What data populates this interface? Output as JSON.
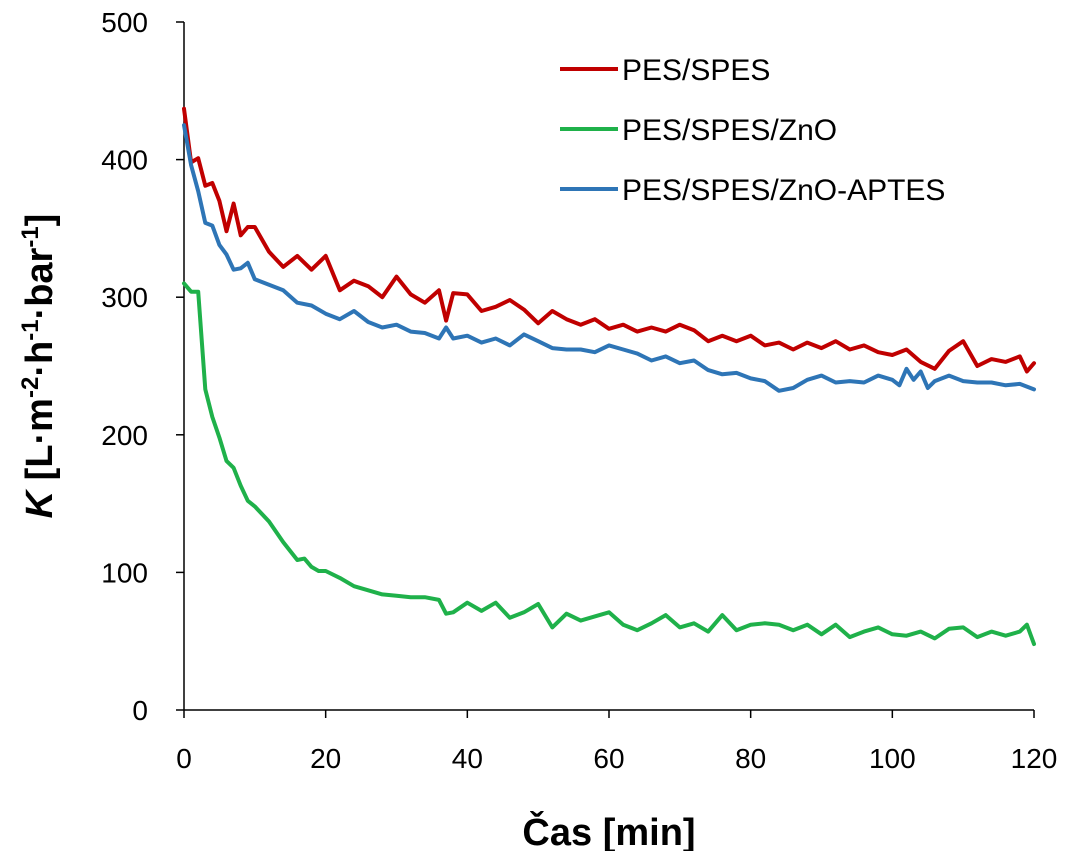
{
  "chart_data": {
    "type": "line",
    "xlabel": "Čas [min]",
    "ylabel": {
      "k": "K",
      "rest": " [L·m",
      "sup1": "-2",
      "mid1": "·h",
      "sup2": "-1",
      "mid2": "·bar",
      "sup3": "-1",
      "end": "]"
    },
    "xlim": [
      0,
      120
    ],
    "ylim": [
      0,
      500
    ],
    "xticks": [
      0,
      20,
      40,
      60,
      80,
      100,
      120
    ],
    "yticks": [
      0,
      100,
      200,
      300,
      400,
      500
    ],
    "grid": false,
    "legend_position": "top-right",
    "series": [
      {
        "name": "PES/SPES",
        "color": "#c00000",
        "x": [
          0,
          1,
          2,
          3,
          4,
          5,
          6,
          7,
          8,
          9,
          10,
          12,
          14,
          16,
          18,
          20,
          22,
          24,
          26,
          28,
          30,
          32,
          34,
          36,
          37,
          38,
          40,
          42,
          44,
          46,
          48,
          50,
          52,
          54,
          56,
          58,
          60,
          62,
          64,
          66,
          68,
          70,
          72,
          74,
          76,
          78,
          80,
          82,
          84,
          86,
          88,
          90,
          92,
          94,
          96,
          98,
          100,
          102,
          104,
          106,
          108,
          110,
          112,
          114,
          116,
          118,
          119,
          120
        ],
        "values": [
          437,
          398,
          401,
          381,
          383,
          370,
          348,
          368,
          345,
          351,
          351,
          333,
          322,
          330,
          320,
          330,
          305,
          312,
          308,
          300,
          315,
          302,
          296,
          305,
          283,
          303,
          302,
          290,
          293,
          298,
          291,
          281,
          290,
          284,
          280,
          284,
          277,
          280,
          275,
          278,
          275,
          280,
          276,
          268,
          272,
          268,
          272,
          265,
          267,
          262,
          267,
          263,
          268,
          262,
          265,
          260,
          258,
          262,
          253,
          248,
          261,
          268,
          250,
          255,
          253,
          257,
          246,
          252
        ]
      },
      {
        "name": "PES/SPES/ZnO",
        "color": "#1fb14a",
        "x": [
          0,
          1,
          2,
          3,
          4,
          5,
          6,
          7,
          8,
          9,
          10,
          12,
          14,
          16,
          17,
          18,
          19,
          20,
          22,
          24,
          26,
          28,
          30,
          32,
          34,
          36,
          37,
          38,
          40,
          42,
          44,
          46,
          48,
          50,
          52,
          54,
          56,
          58,
          60,
          62,
          64,
          66,
          68,
          70,
          72,
          74,
          76,
          78,
          80,
          82,
          84,
          86,
          88,
          90,
          92,
          94,
          96,
          98,
          100,
          102,
          104,
          106,
          108,
          110,
          112,
          114,
          116,
          118,
          119,
          120
        ],
        "values": [
          310,
          304,
          304,
          233,
          213,
          198,
          181,
          176,
          163,
          152,
          148,
          137,
          122,
          109,
          110,
          104,
          101,
          101,
          96,
          90,
          87,
          84,
          83,
          82,
          82,
          80,
          70,
          71,
          78,
          72,
          78,
          67,
          71,
          77,
          60,
          70,
          65,
          68,
          71,
          62,
          58,
          63,
          69,
          60,
          63,
          57,
          69,
          58,
          62,
          63,
          62,
          58,
          62,
          55,
          62,
          53,
          57,
          60,
          55,
          54,
          57,
          52,
          59,
          60,
          53,
          57,
          54,
          57,
          62,
          48
        ]
      },
      {
        "name": "PES/SPES/ZnO-APTES",
        "color": "#2e75b6",
        "x": [
          0,
          1,
          2,
          3,
          4,
          5,
          6,
          7,
          8,
          9,
          10,
          12,
          14,
          16,
          18,
          20,
          22,
          24,
          26,
          28,
          30,
          32,
          34,
          36,
          37,
          38,
          40,
          42,
          44,
          46,
          48,
          50,
          52,
          54,
          56,
          58,
          60,
          62,
          64,
          66,
          68,
          70,
          72,
          74,
          76,
          78,
          80,
          82,
          84,
          86,
          88,
          90,
          92,
          94,
          96,
          98,
          100,
          101,
          102,
          103,
          104,
          105,
          106,
          108,
          110,
          112,
          114,
          116,
          118,
          120
        ],
        "values": [
          425,
          396,
          377,
          354,
          352,
          338,
          331,
          320,
          321,
          325,
          313,
          309,
          305,
          296,
          294,
          288,
          284,
          290,
          282,
          278,
          280,
          275,
          274,
          270,
          278,
          270,
          272,
          267,
          270,
          265,
          273,
          268,
          263,
          262,
          262,
          260,
          265,
          262,
          259,
          254,
          257,
          252,
          254,
          247,
          244,
          245,
          241,
          239,
          232,
          234,
          240,
          243,
          238,
          239,
          238,
          243,
          240,
          236,
          248,
          240,
          246,
          234,
          239,
          243,
          239,
          238,
          238,
          236,
          237,
          233
        ]
      }
    ]
  }
}
